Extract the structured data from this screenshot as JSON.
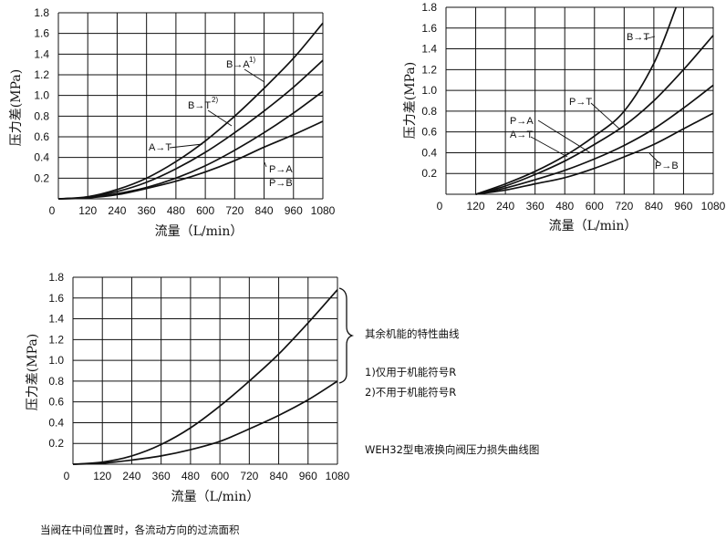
{
  "chart_data": [
    {
      "type": "line",
      "xlabel": "流量（L/min）",
      "ylabel": "压力差(MPa)",
      "xlim": [
        0,
        1080
      ],
      "ylim": [
        0,
        1.8
      ],
      "x_ticks": [
        "0",
        "120",
        "240",
        "360",
        "480",
        "600",
        "720",
        "840",
        "960",
        "1080"
      ],
      "y_ticks": [
        "0.2",
        "0.4",
        "0.6",
        "0.8",
        "1.0",
        "1.2",
        "1.4",
        "1.6",
        "1.8"
      ],
      "grid": true,
      "series": [
        {
          "name": "B→A",
          "sup": "1)",
          "x": [
            0,
            120,
            240,
            360,
            480,
            600,
            720,
            840,
            960,
            1080
          ],
          "y": [
            0,
            0.02,
            0.09,
            0.2,
            0.36,
            0.56,
            0.8,
            1.07,
            1.36,
            1.7
          ]
        },
        {
          "name": "B→T",
          "sup": "2)",
          "x": [
            0,
            120,
            240,
            360,
            480,
            600,
            720,
            840,
            960,
            1080
          ],
          "y": [
            0,
            0.015,
            0.07,
            0.16,
            0.29,
            0.45,
            0.64,
            0.85,
            1.08,
            1.34
          ]
        },
        {
          "name": "A→T",
          "x": [
            0,
            120,
            240,
            360,
            480,
            600,
            720,
            840,
            960,
            1080
          ],
          "y": [
            0,
            0.01,
            0.05,
            0.11,
            0.2,
            0.32,
            0.47,
            0.64,
            0.83,
            1.04
          ]
        },
        {
          "name": "P→A / P→B",
          "x": [
            0,
            120,
            240,
            360,
            480,
            600,
            720,
            840,
            960,
            1080
          ],
          "y": [
            0,
            0.01,
            0.04,
            0.1,
            0.17,
            0.26,
            0.37,
            0.5,
            0.62,
            0.75
          ]
        }
      ]
    },
    {
      "type": "line",
      "xlabel": "流量（L/min）",
      "ylabel": "压力差(MPa)",
      "xlim": [
        0,
        1080
      ],
      "ylim": [
        0,
        1.8
      ],
      "x_ticks": [
        "0",
        "120",
        "240",
        "360",
        "480",
        "600",
        "720",
        "840",
        "960",
        "1080"
      ],
      "y_ticks": [
        "0.2",
        "0.4",
        "0.6",
        "0.8",
        "1.0",
        "1.2",
        "1.4",
        "1.6",
        "1.8"
      ],
      "grid": true,
      "series": [
        {
          "name": "B→T",
          "x": [
            120,
            240,
            360,
            480,
            600,
            720,
            840,
            930
          ],
          "y": [
            0,
            0.1,
            0.22,
            0.37,
            0.56,
            0.8,
            1.26,
            1.8
          ]
        },
        {
          "name": "P→T",
          "x": [
            120,
            240,
            360,
            480,
            600,
            720,
            840,
            960,
            1080
          ],
          "y": [
            0,
            0.08,
            0.19,
            0.32,
            0.48,
            0.66,
            0.9,
            1.2,
            1.53
          ]
        },
        {
          "name": "P→A / A→T",
          "x": [
            120,
            240,
            360,
            480,
            600,
            720,
            840,
            960,
            1080
          ],
          "y": [
            0,
            0.06,
            0.14,
            0.23,
            0.34,
            0.47,
            0.63,
            0.83,
            1.05
          ]
        },
        {
          "name": "P→B",
          "x": [
            120,
            240,
            360,
            480,
            600,
            720,
            840,
            960,
            1080
          ],
          "y": [
            0,
            0.04,
            0.1,
            0.16,
            0.25,
            0.36,
            0.48,
            0.63,
            0.78
          ]
        }
      ]
    },
    {
      "type": "line",
      "xlabel": "流量（L/min）",
      "ylabel": "压力差(MPa)",
      "xlim": [
        0,
        1080
      ],
      "ylim": [
        0,
        1.8
      ],
      "x_ticks": [
        "0",
        "120",
        "240",
        "360",
        "480",
        "600",
        "720",
        "840",
        "960",
        "1080"
      ],
      "y_ticks": [
        "0.2",
        "0.4",
        "0.6",
        "0.8",
        "1.0",
        "1.2",
        "1.4",
        "1.6",
        "1.8"
      ],
      "grid": true,
      "series": [
        {
          "name": "",
          "x": [
            0,
            120,
            240,
            360,
            480,
            600,
            720,
            840,
            960,
            1080
          ],
          "y": [
            0,
            0.02,
            0.08,
            0.19,
            0.35,
            0.56,
            0.8,
            1.06,
            1.36,
            1.68
          ]
        },
        {
          "name": "",
          "x": [
            0,
            120,
            240,
            360,
            480,
            600,
            720,
            840,
            960,
            1080
          ],
          "y": [
            0,
            0.01,
            0.04,
            0.08,
            0.14,
            0.22,
            0.34,
            0.47,
            0.62,
            0.8
          ]
        }
      ]
    }
  ],
  "notes": {
    "brace_label": "其余机能的特性曲线",
    "footnote1": "1)仅用于机能符号R",
    "footnote2": "2)不用于机能符号R",
    "figure_title": "WEH32型电液换向阀压力损失曲线图",
    "bottom_caption": "当阀在中间位置时，各流动方向的过流面积"
  },
  "colors": {
    "line": "#111111",
    "grid": "#111111",
    "background": "#ffffff"
  }
}
